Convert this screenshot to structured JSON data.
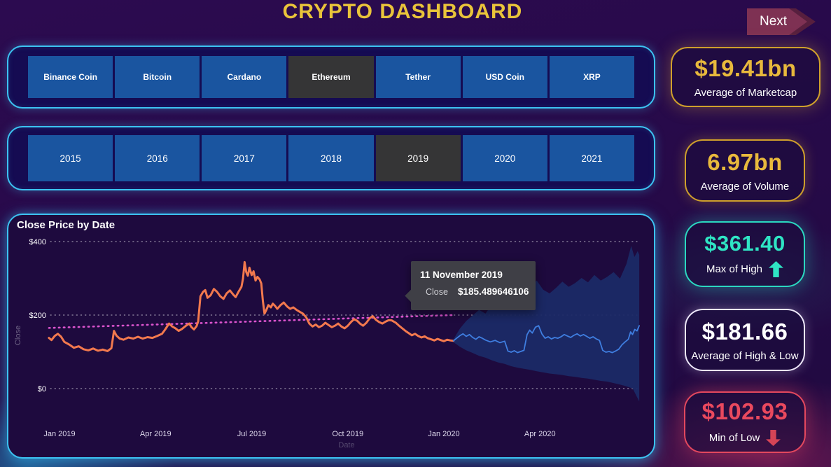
{
  "header": {
    "title": "CRYPTO DASHBOARD",
    "next_label": "Next"
  },
  "coin_slicer": {
    "items": [
      {
        "label": "Binance Coin",
        "selected": false
      },
      {
        "label": "Bitcoin",
        "selected": false
      },
      {
        "label": "Cardano",
        "selected": false
      },
      {
        "label": "Ethereum",
        "selected": true
      },
      {
        "label": "Tether",
        "selected": false
      },
      {
        "label": "USD Coin",
        "selected": false
      },
      {
        "label": "XRP",
        "selected": false
      }
    ]
  },
  "year_slicer": {
    "items": [
      {
        "label": "2015",
        "selected": false
      },
      {
        "label": "2016",
        "selected": false
      },
      {
        "label": "2017",
        "selected": false
      },
      {
        "label": "2018",
        "selected": false
      },
      {
        "label": "2019",
        "selected": true
      },
      {
        "label": "2020",
        "selected": false
      },
      {
        "label": "2021",
        "selected": false
      }
    ]
  },
  "chart": {
    "tooltip": {
      "date": "11 November 2019",
      "series": "Close",
      "value": "$185.489646106",
      "marker_color": "#f2794e"
    }
  },
  "chart_data": {
    "type": "line",
    "title": "Close Price by Date",
    "xlabel": "Date",
    "ylabel": "Close",
    "ylim": [
      0,
      400
    ],
    "grid": "dotted-horizontal",
    "y_ticks": [
      {
        "value": 0,
        "label": "$0"
      },
      {
        "value": 200,
        "label": "$200"
      },
      {
        "value": 400,
        "label": "$400"
      }
    ],
    "x_ticks": [
      {
        "t": 0,
        "label": "Jan 2019"
      },
      {
        "t": 3,
        "label": "Apr 2019"
      },
      {
        "t": 6,
        "label": "Jul 2019"
      },
      {
        "t": 9,
        "label": "Oct 2019"
      },
      {
        "t": 12,
        "label": "Jan 2020"
      },
      {
        "t": 15,
        "label": "Apr 2020"
      }
    ],
    "series": [
      {
        "name": "Close",
        "color": "#f2794e",
        "width": 3,
        "points": [
          [
            -0.33,
            138
          ],
          [
            -0.25,
            132
          ],
          [
            -0.15,
            143
          ],
          [
            -0.05,
            149
          ],
          [
            0.05,
            141
          ],
          [
            0.15,
            127
          ],
          [
            0.3,
            120
          ],
          [
            0.45,
            111
          ],
          [
            0.6,
            115
          ],
          [
            0.75,
            107
          ],
          [
            0.9,
            104
          ],
          [
            1.05,
            109
          ],
          [
            1.2,
            103
          ],
          [
            1.35,
            106
          ],
          [
            1.5,
            102
          ],
          [
            1.62,
            110
          ],
          [
            1.7,
            157
          ],
          [
            1.78,
            144
          ],
          [
            1.88,
            136
          ],
          [
            2,
            133
          ],
          [
            2.15,
            139
          ],
          [
            2.3,
            136
          ],
          [
            2.45,
            141
          ],
          [
            2.6,
            136
          ],
          [
            2.75,
            140
          ],
          [
            2.9,
            138
          ],
          [
            3.05,
            143
          ],
          [
            3.2,
            149
          ],
          [
            3.3,
            161
          ],
          [
            3.42,
            177
          ],
          [
            3.52,
            169
          ],
          [
            3.62,
            164
          ],
          [
            3.72,
            157
          ],
          [
            3.82,
            162
          ],
          [
            3.95,
            171
          ],
          [
            4.05,
            177
          ],
          [
            4.12,
            167
          ],
          [
            4.2,
            161
          ],
          [
            4.28,
            170
          ],
          [
            4.33,
            183
          ],
          [
            4.4,
            251
          ],
          [
            4.48,
            263
          ],
          [
            4.55,
            268
          ],
          [
            4.62,
            247
          ],
          [
            4.72,
            254
          ],
          [
            4.82,
            271
          ],
          [
            4.92,
            263
          ],
          [
            5.02,
            251
          ],
          [
            5.12,
            244
          ],
          [
            5.22,
            259
          ],
          [
            5.32,
            267
          ],
          [
            5.42,
            256
          ],
          [
            5.5,
            249
          ],
          [
            5.58,
            262
          ],
          [
            5.68,
            277
          ],
          [
            5.73,
            299
          ],
          [
            5.78,
            344
          ],
          [
            5.83,
            317
          ],
          [
            5.88,
            307
          ],
          [
            5.93,
            329
          ],
          [
            6,
            309
          ],
          [
            6.06,
            319
          ],
          [
            6.12,
            294
          ],
          [
            6.18,
            304
          ],
          [
            6.25,
            297
          ],
          [
            6.3,
            286
          ],
          [
            6.35,
            238
          ],
          [
            6.4,
            204
          ],
          [
            6.46,
            214
          ],
          [
            6.52,
            227
          ],
          [
            6.6,
            221
          ],
          [
            6.66,
            231
          ],
          [
            6.73,
            225
          ],
          [
            6.8,
            217
          ],
          [
            6.9,
            227
          ],
          [
            7,
            234
          ],
          [
            7.1,
            224
          ],
          [
            7.2,
            217
          ],
          [
            7.3,
            221
          ],
          [
            7.4,
            214
          ],
          [
            7.5,
            209
          ],
          [
            7.6,
            204
          ],
          [
            7.7,
            194
          ],
          [
            7.8,
            177
          ],
          [
            7.9,
            169
          ],
          [
            8,
            174
          ],
          [
            8.1,
            167
          ],
          [
            8.2,
            171
          ],
          [
            8.3,
            179
          ],
          [
            8.4,
            173
          ],
          [
            8.5,
            167
          ],
          [
            8.6,
            171
          ],
          [
            8.7,
            177
          ],
          [
            8.8,
            169
          ],
          [
            8.9,
            164
          ],
          [
            9,
            171
          ],
          [
            9.1,
            181
          ],
          [
            9.2,
            189
          ],
          [
            9.3,
            184
          ],
          [
            9.38,
            177
          ],
          [
            9.48,
            171
          ],
          [
            9.58,
            179
          ],
          [
            9.68,
            191
          ],
          [
            9.78,
            197
          ],
          [
            9.88,
            187
          ],
          [
            9.98,
            181
          ],
          [
            10.08,
            177
          ],
          [
            10.18,
            182
          ],
          [
            10.28,
            186
          ],
          [
            10.37,
            185.5
          ],
          [
            10.5,
            179
          ],
          [
            10.6,
            171
          ],
          [
            10.7,
            164
          ],
          [
            10.8,
            157
          ],
          [
            10.9,
            151
          ],
          [
            11,
            145
          ],
          [
            11.1,
            149
          ],
          [
            11.2,
            143
          ],
          [
            11.3,
            139
          ],
          [
            11.4,
            142
          ],
          [
            11.5,
            137
          ],
          [
            11.6,
            134
          ],
          [
            11.7,
            131
          ],
          [
            11.8,
            135
          ],
          [
            11.9,
            132
          ],
          [
            12,
            129
          ],
          [
            12.1,
            133
          ],
          [
            12.2,
            131
          ],
          [
            12.3,
            130
          ]
        ]
      },
      {
        "name": "Forecast",
        "color": "#3f7ee0",
        "width": 1.8,
        "points": [
          [
            12.3,
            130
          ],
          [
            12.4,
            137
          ],
          [
            12.5,
            144
          ],
          [
            12.6,
            149
          ],
          [
            12.7,
            142
          ],
          [
            12.8,
            147
          ],
          [
            12.9,
            139
          ],
          [
            13,
            134
          ],
          [
            13.1,
            141
          ],
          [
            13.2,
            137
          ],
          [
            13.3,
            132
          ],
          [
            13.45,
            127
          ],
          [
            13.6,
            131
          ],
          [
            13.75,
            125
          ],
          [
            13.9,
            129
          ],
          [
            14,
            102
          ],
          [
            14.1,
            99
          ],
          [
            14.2,
            103
          ],
          [
            14.3,
            98
          ],
          [
            14.4,
            101
          ],
          [
            14.5,
            104
          ],
          [
            14.6,
            147
          ],
          [
            14.68,
            159
          ],
          [
            14.76,
            151
          ],
          [
            14.86,
            167
          ],
          [
            14.96,
            171
          ],
          [
            15.06,
            149
          ],
          [
            15.16,
            137
          ],
          [
            15.26,
            141
          ],
          [
            15.36,
            135
          ],
          [
            15.46,
            139
          ],
          [
            15.56,
            137
          ],
          [
            15.66,
            141
          ],
          [
            15.76,
            147
          ],
          [
            15.86,
            143
          ],
          [
            15.96,
            139
          ],
          [
            16.06,
            145
          ],
          [
            16.16,
            149
          ],
          [
            16.26,
            143
          ],
          [
            16.36,
            147
          ],
          [
            16.46,
            142
          ],
          [
            16.56,
            137
          ],
          [
            16.66,
            141
          ],
          [
            16.76,
            135
          ],
          [
            16.86,
            131
          ],
          [
            16.96,
            104
          ],
          [
            17.06,
            99
          ],
          [
            17.16,
            101
          ],
          [
            17.26,
            98
          ],
          [
            17.36,
            102
          ],
          [
            17.46,
            107
          ],
          [
            17.56,
            119
          ],
          [
            17.66,
            127
          ],
          [
            17.76,
            134
          ],
          [
            17.83,
            154
          ],
          [
            17.89,
            147
          ],
          [
            17.96,
            161
          ],
          [
            18.03,
            157
          ],
          [
            18.1,
            171
          ]
        ]
      }
    ],
    "confidence_band": {
      "color": "#1b2a66",
      "upper": [
        [
          12.3,
          134
        ],
        [
          12.5,
          163
        ],
        [
          12.7,
          184
        ],
        [
          12.9,
          199
        ],
        [
          13.1,
          214
        ],
        [
          13.3,
          204
        ],
        [
          13.5,
          229
        ],
        [
          13.7,
          259
        ],
        [
          13.9,
          244
        ],
        [
          14.1,
          268
        ],
        [
          14.3,
          254
        ],
        [
          14.5,
          261
        ],
        [
          14.7,
          279
        ],
        [
          14.9,
          294
        ],
        [
          15.1,
          269
        ],
        [
          15.3,
          259
        ],
        [
          15.5,
          274
        ],
        [
          15.7,
          291
        ],
        [
          15.9,
          277
        ],
        [
          16.1,
          287
        ],
        [
          16.3,
          301
        ],
        [
          16.5,
          289
        ],
        [
          16.7,
          309
        ],
        [
          16.9,
          294
        ],
        [
          17.1,
          304
        ],
        [
          17.3,
          317
        ],
        [
          17.5,
          299
        ],
        [
          17.7,
          339
        ],
        [
          17.85,
          388
        ],
        [
          17.95,
          358
        ],
        [
          18.05,
          374
        ],
        [
          18.1,
          364
        ]
      ],
      "lower": [
        [
          12.3,
          126
        ],
        [
          12.5,
          114
        ],
        [
          12.7,
          104
        ],
        [
          12.9,
          97
        ],
        [
          13.1,
          89
        ],
        [
          13.3,
          84
        ],
        [
          13.5,
          77
        ],
        [
          13.7,
          71
        ],
        [
          13.9,
          67
        ],
        [
          14.1,
          61
        ],
        [
          14.3,
          57
        ],
        [
          14.5,
          54
        ],
        [
          14.7,
          51
        ],
        [
          14.9,
          47
        ],
        [
          15.1,
          44
        ],
        [
          15.3,
          41
        ],
        [
          15.5,
          39
        ],
        [
          15.7,
          37
        ],
        [
          15.9,
          34
        ],
        [
          16.1,
          32
        ],
        [
          16.3,
          29
        ],
        [
          16.5,
          27
        ],
        [
          16.7,
          24
        ],
        [
          16.9,
          21
        ],
        [
          17.1,
          19
        ],
        [
          17.3,
          15
        ],
        [
          17.5,
          11
        ],
        [
          17.7,
          6
        ],
        [
          17.9,
          0
        ],
        [
          18,
          -18
        ],
        [
          18.1,
          -35
        ]
      ]
    },
    "trend_line": {
      "color": "#dc54ce",
      "style": "dotted",
      "start": [
        -0.33,
        165
      ],
      "end": [
        12.3,
        200
      ]
    },
    "legend": "off"
  },
  "kpis": [
    {
      "value": "$19.41bn",
      "label": "Average of Marketcap",
      "accent": "#e8b93c",
      "arrow": null
    },
    {
      "value": "6.97bn",
      "label": "Average of Volume",
      "accent": "#e8b93c",
      "arrow": null
    },
    {
      "value": "$361.40",
      "label": "Max of High",
      "accent": "#2fe5c4",
      "arrow": "up"
    },
    {
      "value": "$181.66",
      "label": "Average of High & Low",
      "accent": "#ffffff",
      "arrow": null
    },
    {
      "value": "$102.93",
      "label": "Min of Low",
      "accent": "#ea495e",
      "arrow": "down"
    }
  ],
  "colors": {
    "background": "#260a48",
    "panel_border": "#3cc3f2",
    "slicer_panel_bg": "#150b52",
    "chart_panel_bg": "#1e0a3e",
    "button_blue": "#1a55a0",
    "button_selected": "#353536",
    "title_gold": "#e9c43a",
    "close_line": "#f2794e",
    "forecast_line": "#3f7ee0",
    "band_fill": "#1b2a66",
    "trend_pink": "#dc54ce",
    "tooltip_bg": "#3f3f46",
    "kpi_gold": "#e8b93c",
    "kpi_teal": "#2fe5c4",
    "kpi_red": "#ea495e",
    "next_btn": "#7e3153"
  }
}
